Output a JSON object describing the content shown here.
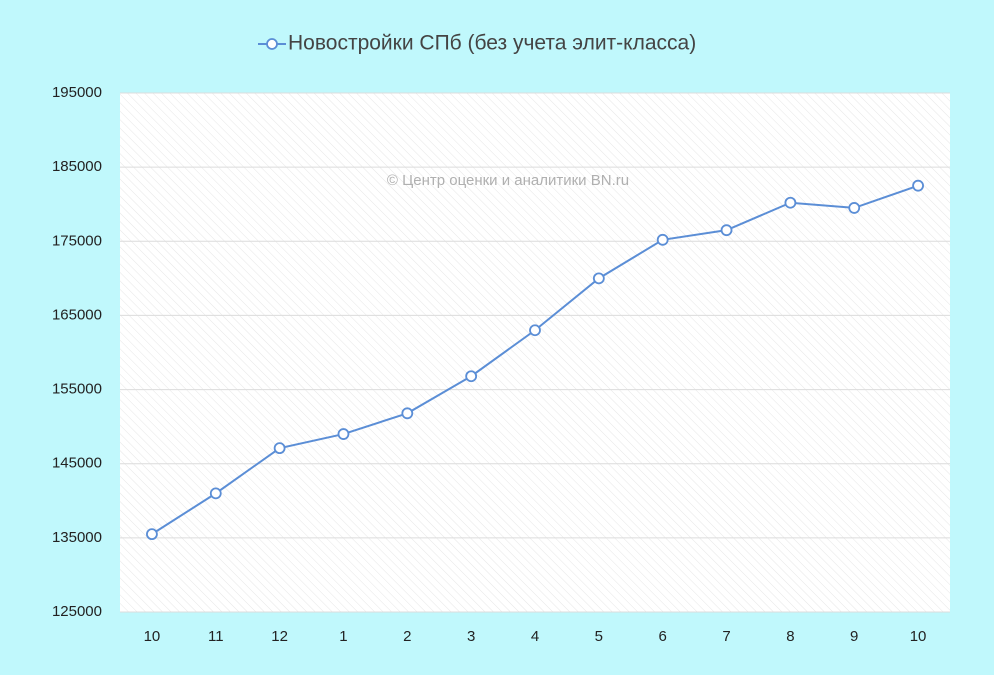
{
  "chart_data": {
    "type": "line",
    "annotation": "© Центр оценки и аналитики BN.ru",
    "categories": [
      "10",
      "11",
      "12",
      "1",
      "2",
      "3",
      "4",
      "5",
      "6",
      "7",
      "8",
      "9",
      "10"
    ],
    "series": [
      {
        "name": "Новостройки СПб (без учета элит-класса)",
        "color": "#5b8ed6",
        "values": [
          135500,
          141000,
          147100,
          149000,
          151800,
          156800,
          163000,
          170000,
          175200,
          176500,
          180200,
          179500,
          182500
        ]
      }
    ],
    "ylim": [
      125000,
      195000
    ],
    "yticks": [
      125000,
      135000,
      145000,
      155000,
      165000,
      175000,
      185000,
      195000
    ],
    "grid": true,
    "legend": "top"
  }
}
